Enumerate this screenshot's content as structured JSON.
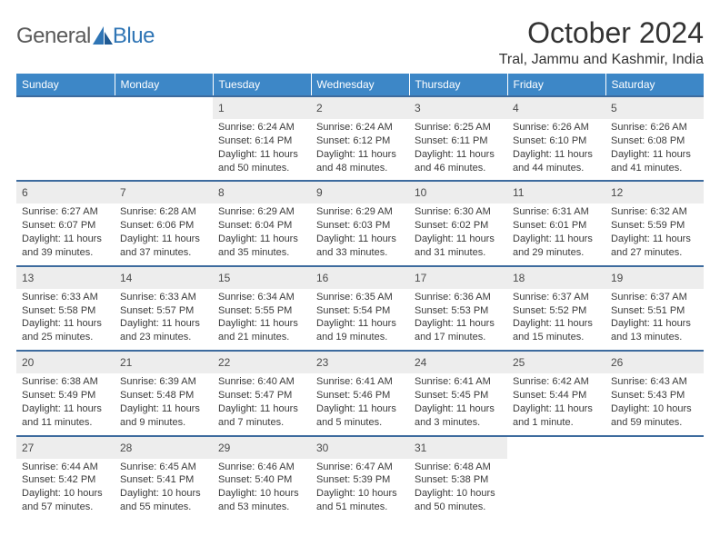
{
  "logo": {
    "general": "General",
    "blue": "Blue"
  },
  "title": "October 2024",
  "location": "Tral, Jammu and Kashmir, India",
  "colors": {
    "header_bg": "#3d87c7",
    "header_text": "#ffffff",
    "daynum_bg": "#ededed",
    "cell_border": "#3d6b9e",
    "body_text": "#3a3a3a",
    "logo_text": "#5a5a5a",
    "logo_blue": "#2f75b5"
  },
  "weekdays": [
    "Sunday",
    "Monday",
    "Tuesday",
    "Wednesday",
    "Thursday",
    "Friday",
    "Saturday"
  ],
  "weeks": [
    [
      null,
      null,
      {
        "n": "1",
        "sr": "6:24 AM",
        "ss": "6:14 PM",
        "dl": "11 hours and 50 minutes."
      },
      {
        "n": "2",
        "sr": "6:24 AM",
        "ss": "6:12 PM",
        "dl": "11 hours and 48 minutes."
      },
      {
        "n": "3",
        "sr": "6:25 AM",
        "ss": "6:11 PM",
        "dl": "11 hours and 46 minutes."
      },
      {
        "n": "4",
        "sr": "6:26 AM",
        "ss": "6:10 PM",
        "dl": "11 hours and 44 minutes."
      },
      {
        "n": "5",
        "sr": "6:26 AM",
        "ss": "6:08 PM",
        "dl": "11 hours and 41 minutes."
      }
    ],
    [
      {
        "n": "6",
        "sr": "6:27 AM",
        "ss": "6:07 PM",
        "dl": "11 hours and 39 minutes."
      },
      {
        "n": "7",
        "sr": "6:28 AM",
        "ss": "6:06 PM",
        "dl": "11 hours and 37 minutes."
      },
      {
        "n": "8",
        "sr": "6:29 AM",
        "ss": "6:04 PM",
        "dl": "11 hours and 35 minutes."
      },
      {
        "n": "9",
        "sr": "6:29 AM",
        "ss": "6:03 PM",
        "dl": "11 hours and 33 minutes."
      },
      {
        "n": "10",
        "sr": "6:30 AM",
        "ss": "6:02 PM",
        "dl": "11 hours and 31 minutes."
      },
      {
        "n": "11",
        "sr": "6:31 AM",
        "ss": "6:01 PM",
        "dl": "11 hours and 29 minutes."
      },
      {
        "n": "12",
        "sr": "6:32 AM",
        "ss": "5:59 PM",
        "dl": "11 hours and 27 minutes."
      }
    ],
    [
      {
        "n": "13",
        "sr": "6:33 AM",
        "ss": "5:58 PM",
        "dl": "11 hours and 25 minutes."
      },
      {
        "n": "14",
        "sr": "6:33 AM",
        "ss": "5:57 PM",
        "dl": "11 hours and 23 minutes."
      },
      {
        "n": "15",
        "sr": "6:34 AM",
        "ss": "5:55 PM",
        "dl": "11 hours and 21 minutes."
      },
      {
        "n": "16",
        "sr": "6:35 AM",
        "ss": "5:54 PM",
        "dl": "11 hours and 19 minutes."
      },
      {
        "n": "17",
        "sr": "6:36 AM",
        "ss": "5:53 PM",
        "dl": "11 hours and 17 minutes."
      },
      {
        "n": "18",
        "sr": "6:37 AM",
        "ss": "5:52 PM",
        "dl": "11 hours and 15 minutes."
      },
      {
        "n": "19",
        "sr": "6:37 AM",
        "ss": "5:51 PM",
        "dl": "11 hours and 13 minutes."
      }
    ],
    [
      {
        "n": "20",
        "sr": "6:38 AM",
        "ss": "5:49 PM",
        "dl": "11 hours and 11 minutes."
      },
      {
        "n": "21",
        "sr": "6:39 AM",
        "ss": "5:48 PM",
        "dl": "11 hours and 9 minutes."
      },
      {
        "n": "22",
        "sr": "6:40 AM",
        "ss": "5:47 PM",
        "dl": "11 hours and 7 minutes."
      },
      {
        "n": "23",
        "sr": "6:41 AM",
        "ss": "5:46 PM",
        "dl": "11 hours and 5 minutes."
      },
      {
        "n": "24",
        "sr": "6:41 AM",
        "ss": "5:45 PM",
        "dl": "11 hours and 3 minutes."
      },
      {
        "n": "25",
        "sr": "6:42 AM",
        "ss": "5:44 PM",
        "dl": "11 hours and 1 minute."
      },
      {
        "n": "26",
        "sr": "6:43 AM",
        "ss": "5:43 PM",
        "dl": "10 hours and 59 minutes."
      }
    ],
    [
      {
        "n": "27",
        "sr": "6:44 AM",
        "ss": "5:42 PM",
        "dl": "10 hours and 57 minutes."
      },
      {
        "n": "28",
        "sr": "6:45 AM",
        "ss": "5:41 PM",
        "dl": "10 hours and 55 minutes."
      },
      {
        "n": "29",
        "sr": "6:46 AM",
        "ss": "5:40 PM",
        "dl": "10 hours and 53 minutes."
      },
      {
        "n": "30",
        "sr": "6:47 AM",
        "ss": "5:39 PM",
        "dl": "10 hours and 51 minutes."
      },
      {
        "n": "31",
        "sr": "6:48 AM",
        "ss": "5:38 PM",
        "dl": "10 hours and 50 minutes."
      },
      null,
      null
    ]
  ],
  "labels": {
    "sunrise": "Sunrise:",
    "sunset": "Sunset:",
    "daylight": "Daylight:"
  }
}
